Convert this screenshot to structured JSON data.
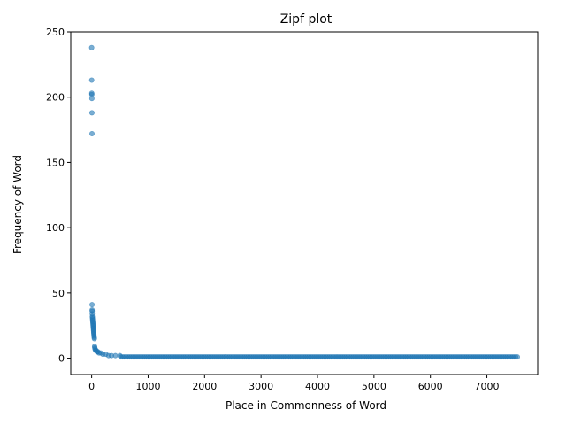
{
  "chart_data": {
    "type": "scatter",
    "title": "Zipf plot",
    "xlabel": "Place in Commonness of Word",
    "ylabel": "Frequency of Word",
    "xlim": [
      -370,
      7900
    ],
    "ylim": [
      -12.5,
      250
    ],
    "xticks": [
      0,
      1000,
      2000,
      3000,
      4000,
      5000,
      6000,
      7000
    ],
    "yticks": [
      0,
      50,
      100,
      150,
      200,
      250
    ],
    "grid": false,
    "legend": "none",
    "marker_color": "#1f77b4",
    "marker_alpha": 0.6,
    "series": [
      {
        "head_points": [
          [
            0,
            238
          ],
          [
            1,
            213
          ],
          [
            2,
            203
          ],
          [
            3,
            202
          ],
          [
            4,
            199
          ],
          [
            5,
            188
          ],
          [
            6,
            172
          ],
          [
            7,
            41
          ],
          [
            8,
            37
          ],
          [
            9,
            36
          ],
          [
            10,
            34
          ],
          [
            12,
            32
          ],
          [
            14,
            31
          ],
          [
            16,
            30
          ],
          [
            18,
            29
          ],
          [
            20,
            28
          ],
          [
            22,
            27
          ],
          [
            24,
            26
          ],
          [
            26,
            25
          ],
          [
            28,
            24
          ],
          [
            30,
            23
          ],
          [
            32,
            22
          ],
          [
            34,
            21
          ],
          [
            36,
            20
          ],
          [
            38,
            19
          ],
          [
            40,
            18
          ],
          [
            42,
            17
          ],
          [
            45,
            16
          ],
          [
            48,
            15
          ],
          [
            52,
            9
          ],
          [
            56,
            8
          ],
          [
            60,
            7
          ],
          [
            70,
            6
          ],
          [
            80,
            6
          ],
          [
            95,
            5
          ],
          [
            110,
            5
          ],
          [
            130,
            4
          ],
          [
            160,
            4
          ],
          [
            200,
            3
          ],
          [
            250,
            3
          ],
          [
            300,
            2
          ],
          [
            350,
            2
          ],
          [
            420,
            2
          ],
          [
            500,
            2
          ]
        ],
        "tail": {
          "x_start": 520,
          "x_end": 7540,
          "step": 30,
          "y": 1
        }
      }
    ]
  }
}
